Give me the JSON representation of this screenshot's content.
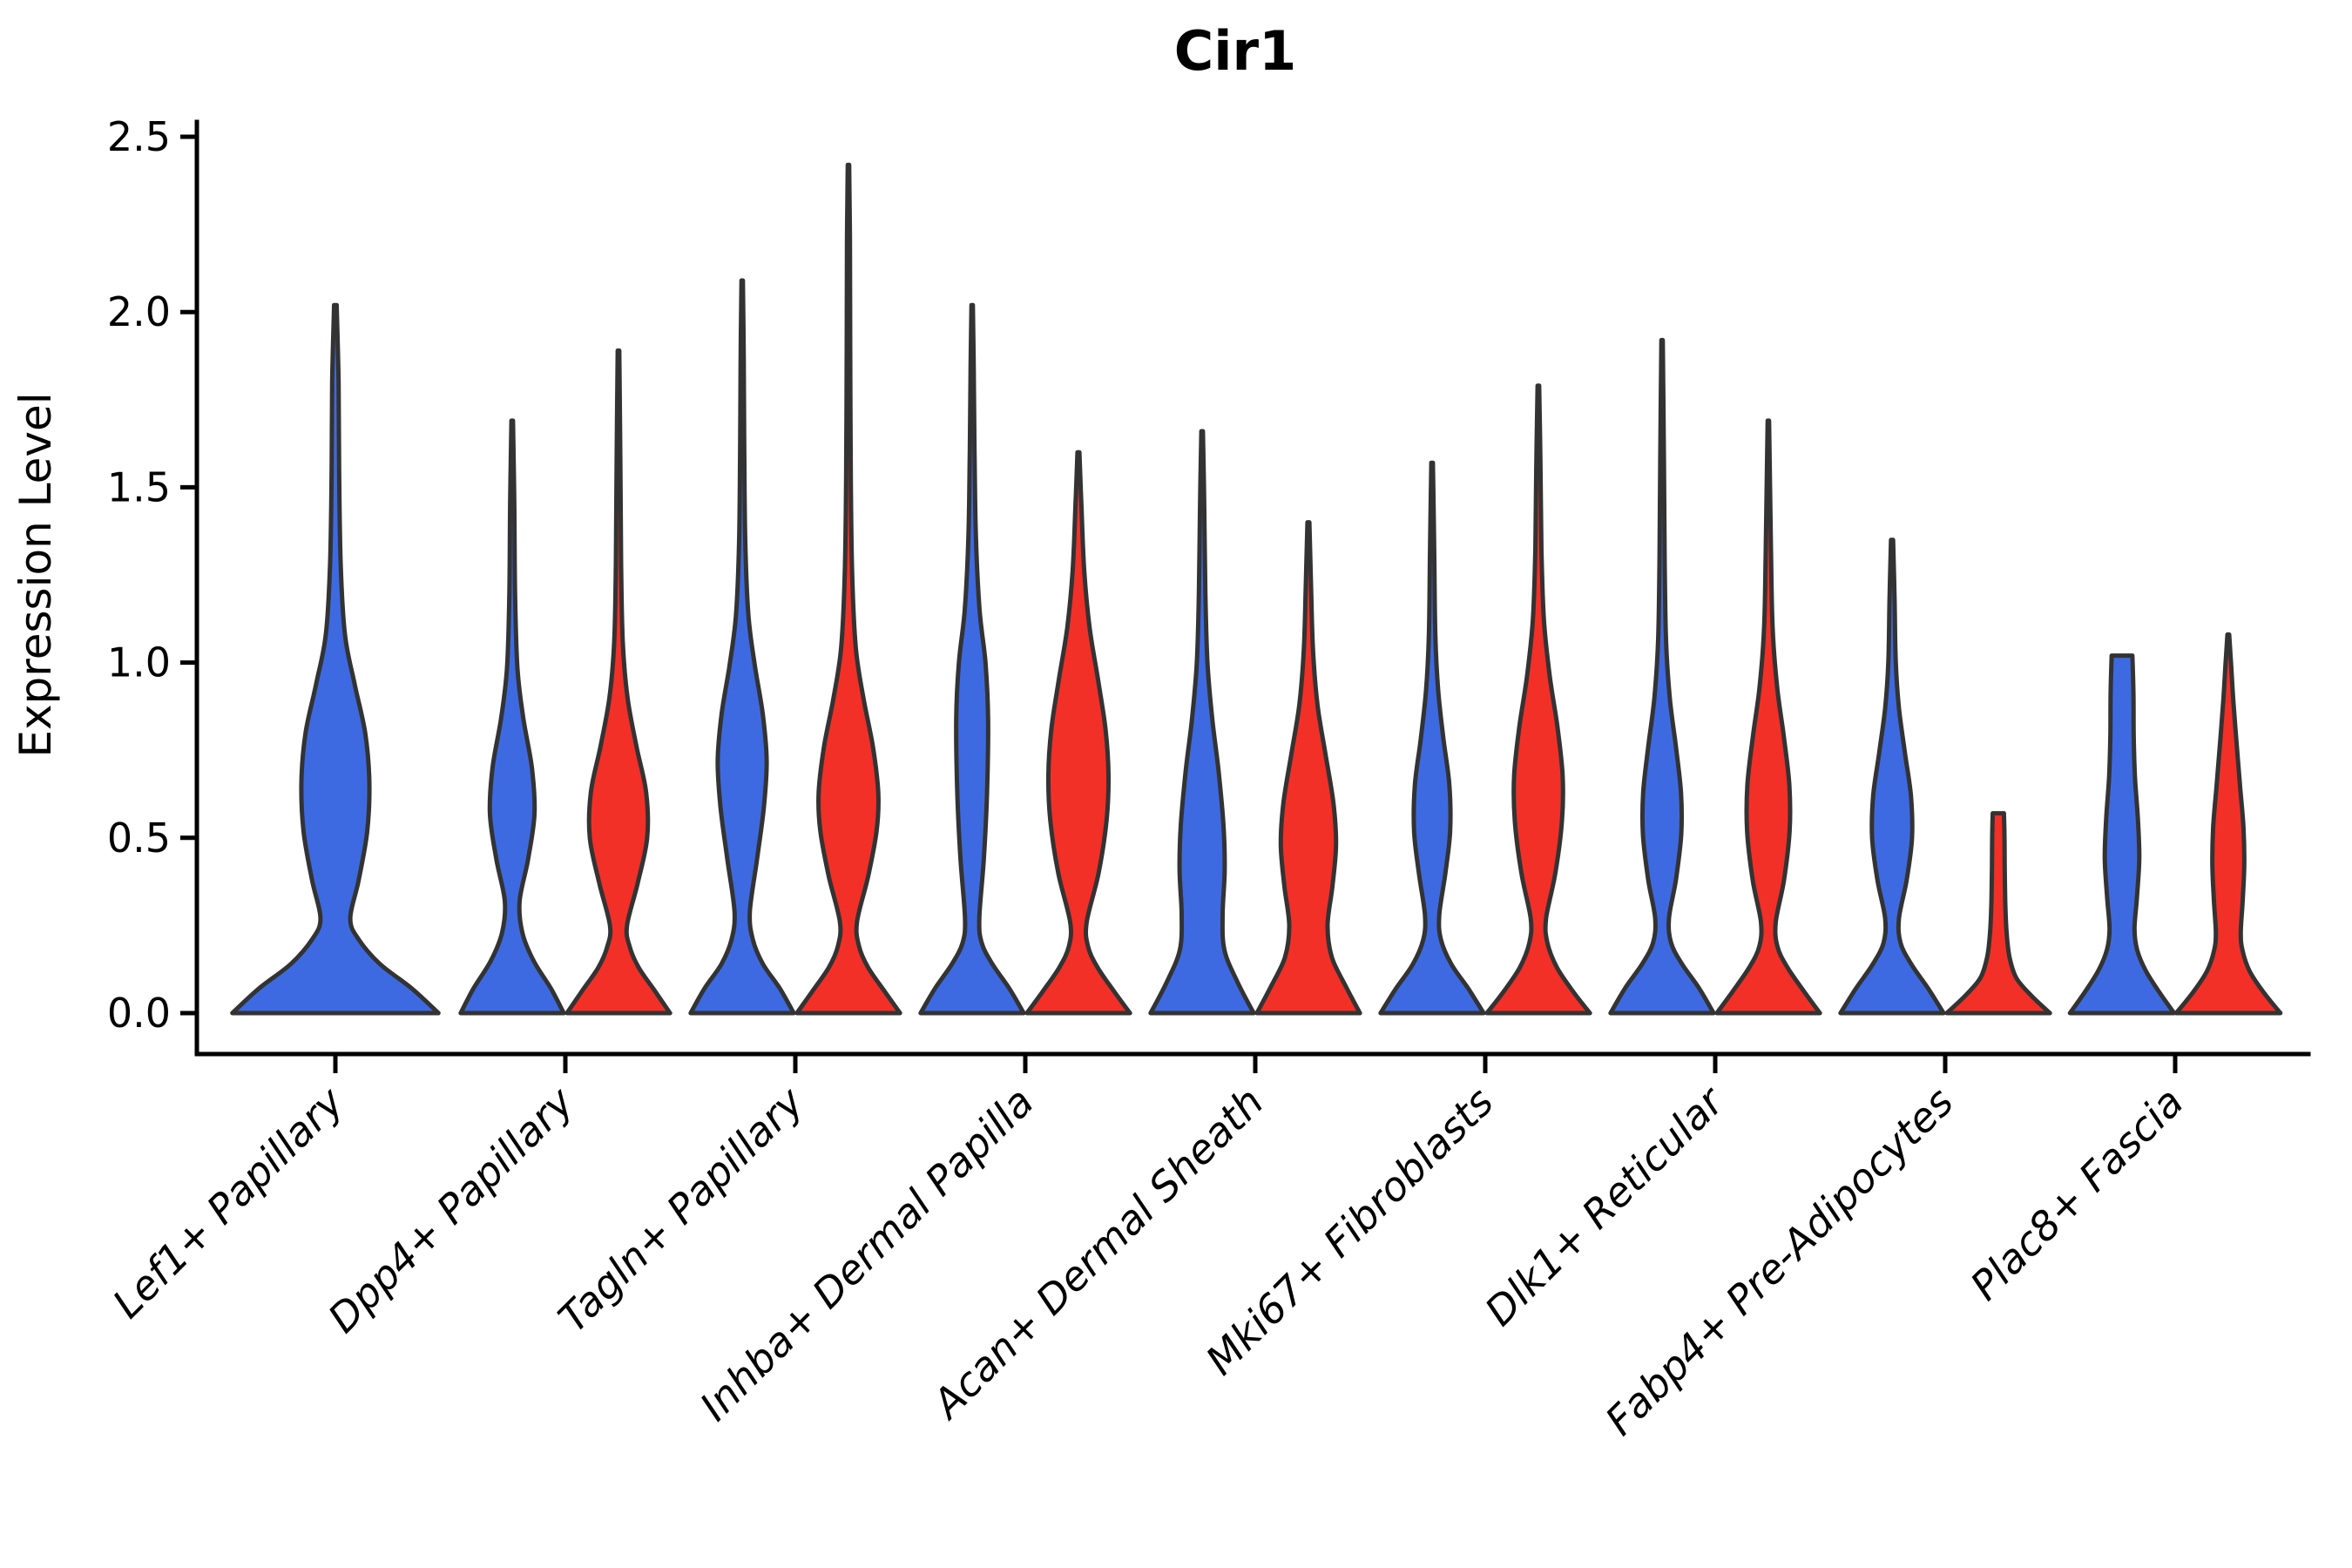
{
  "chart_data": {
    "type": "violin",
    "title": "Cir1",
    "xlabel": "",
    "ylabel": "Expression Level",
    "ylim": [
      0,
      2.5
    ],
    "yticks": [
      0,
      0.5,
      1.0,
      1.5,
      2.0,
      2.5
    ],
    "ytick_labels": [
      "0.0",
      "0.5",
      "1.0",
      "1.5",
      "2.0",
      "2.5"
    ],
    "grid": false,
    "legend": "none",
    "categories": [
      "Lef1+ Papillary",
      "Dpp4+ Papillary",
      "Tagln+ Papillary",
      "Inhba+ Dermal Papilla",
      "Acan+ Dermal Sheath",
      "Mki67+ Fibroblasts",
      "Dlk1+ Reticular",
      "Fabp4+ Pre-Adipocytes",
      "Plac8+ Fascia"
    ],
    "colors": {
      "blue": "#3E6AE1",
      "red": "#F23028",
      "outline": "#333333",
      "axis": "#000000"
    },
    "series_note": "blue = left split violin, red = right split violin; first category has a single double-width blue violin",
    "violins": [
      {
        "category": 0,
        "split": "blue",
        "offset": 0,
        "width_scale": 2,
        "max": 2.02,
        "blunt": false,
        "profile": [
          [
            0,
            0.97
          ],
          [
            0.07,
            0.72
          ],
          [
            0.14,
            0.42
          ],
          [
            0.21,
            0.22
          ],
          [
            0.27,
            0.14
          ],
          [
            0.38,
            0.22
          ],
          [
            0.52,
            0.3
          ],
          [
            0.66,
            0.32
          ],
          [
            0.8,
            0.28
          ],
          [
            0.94,
            0.18
          ],
          [
            1.08,
            0.09
          ],
          [
            1.28,
            0.05
          ],
          [
            1.55,
            0.035
          ],
          [
            1.8,
            0.03
          ],
          [
            2.02,
            0.012
          ]
        ]
      },
      {
        "category": 1,
        "split": "blue",
        "offset": -1,
        "width_scale": 1,
        "max": 1.69,
        "blunt": false,
        "profile": [
          [
            0,
            0.97
          ],
          [
            0.07,
            0.73
          ],
          [
            0.15,
            0.4
          ],
          [
            0.23,
            0.19
          ],
          [
            0.32,
            0.14
          ],
          [
            0.44,
            0.3
          ],
          [
            0.57,
            0.42
          ],
          [
            0.7,
            0.37
          ],
          [
            0.84,
            0.21
          ],
          [
            0.98,
            0.1
          ],
          [
            1.18,
            0.055
          ],
          [
            1.45,
            0.04
          ],
          [
            1.69,
            0.015
          ]
        ]
      },
      {
        "category": 1,
        "split": "red",
        "offset": 1,
        "width_scale": 1,
        "max": 1.89,
        "blunt": false,
        "profile": [
          [
            0,
            0.97
          ],
          [
            0.06,
            0.7
          ],
          [
            0.13,
            0.38
          ],
          [
            0.19,
            0.21
          ],
          [
            0.25,
            0.16
          ],
          [
            0.37,
            0.36
          ],
          [
            0.5,
            0.54
          ],
          [
            0.63,
            0.52
          ],
          [
            0.76,
            0.34
          ],
          [
            0.9,
            0.17
          ],
          [
            1.06,
            0.08
          ],
          [
            1.28,
            0.05
          ],
          [
            1.58,
            0.035
          ],
          [
            1.89,
            0.015
          ]
        ]
      },
      {
        "category": 2,
        "split": "blue",
        "offset": -1,
        "width_scale": 1,
        "max": 2.09,
        "blunt": false,
        "profile": [
          [
            0,
            0.97
          ],
          [
            0.07,
            0.71
          ],
          [
            0.14,
            0.39
          ],
          [
            0.21,
            0.2
          ],
          [
            0.29,
            0.145
          ],
          [
            0.44,
            0.28
          ],
          [
            0.59,
            0.41
          ],
          [
            0.72,
            0.46
          ],
          [
            0.85,
            0.39
          ],
          [
            0.99,
            0.24
          ],
          [
            1.13,
            0.12
          ],
          [
            1.33,
            0.06
          ],
          [
            1.6,
            0.04
          ],
          [
            1.86,
            0.03
          ],
          [
            2.09,
            0.012
          ]
        ]
      },
      {
        "category": 2,
        "split": "red",
        "offset": 1,
        "width_scale": 1,
        "max": 2.42,
        "blunt": false,
        "profile": [
          [
            0,
            0.97
          ],
          [
            0.06,
            0.69
          ],
          [
            0.13,
            0.37
          ],
          [
            0.19,
            0.2
          ],
          [
            0.26,
            0.16
          ],
          [
            0.39,
            0.37
          ],
          [
            0.52,
            0.53
          ],
          [
            0.63,
            0.56
          ],
          [
            0.76,
            0.46
          ],
          [
            0.9,
            0.28
          ],
          [
            1.04,
            0.14
          ],
          [
            1.25,
            0.07
          ],
          [
            1.52,
            0.045
          ],
          [
            1.9,
            0.032
          ],
          [
            2.2,
            0.028
          ],
          [
            2.42,
            0.012
          ]
        ]
      },
      {
        "category": 3,
        "split": "blue",
        "offset": -1,
        "width_scale": 1,
        "max": 2.02,
        "blunt": false,
        "profile": [
          [
            0,
            0.97
          ],
          [
            0.07,
            0.7
          ],
          [
            0.14,
            0.38
          ],
          [
            0.2,
            0.18
          ],
          [
            0.27,
            0.135
          ],
          [
            0.44,
            0.22
          ],
          [
            0.63,
            0.28
          ],
          [
            0.84,
            0.3
          ],
          [
            1.0,
            0.25
          ],
          [
            1.15,
            0.14
          ],
          [
            1.36,
            0.07
          ],
          [
            1.6,
            0.045
          ],
          [
            1.84,
            0.03
          ],
          [
            2.02,
            0.012
          ]
        ]
      },
      {
        "category": 3,
        "split": "red",
        "offset": 1,
        "width_scale": 1,
        "max": 1.6,
        "blunt": false,
        "profile": [
          [
            0,
            0.97
          ],
          [
            0.06,
            0.68
          ],
          [
            0.13,
            0.36
          ],
          [
            0.19,
            0.18
          ],
          [
            0.26,
            0.155
          ],
          [
            0.4,
            0.38
          ],
          [
            0.55,
            0.53
          ],
          [
            0.68,
            0.565
          ],
          [
            0.81,
            0.51
          ],
          [
            0.95,
            0.37
          ],
          [
            1.1,
            0.21
          ],
          [
            1.26,
            0.11
          ],
          [
            1.45,
            0.055
          ],
          [
            1.6,
            0.018
          ]
        ]
      },
      {
        "category": 4,
        "split": "blue",
        "offset": -1,
        "width_scale": 1,
        "max": 1.66,
        "blunt": false,
        "profile": [
          [
            0,
            0.97
          ],
          [
            0.09,
            0.66
          ],
          [
            0.18,
            0.42
          ],
          [
            0.28,
            0.385
          ],
          [
            0.41,
            0.425
          ],
          [
            0.54,
            0.4
          ],
          [
            0.69,
            0.31
          ],
          [
            0.84,
            0.19
          ],
          [
            1.0,
            0.1
          ],
          [
            1.2,
            0.06
          ],
          [
            1.45,
            0.04
          ],
          [
            1.66,
            0.015
          ]
        ]
      },
      {
        "category": 4,
        "split": "red",
        "offset": 1,
        "width_scale": 1,
        "max": 1.4,
        "blunt": false,
        "profile": [
          [
            0,
            0.97
          ],
          [
            0.08,
            0.69
          ],
          [
            0.16,
            0.44
          ],
          [
            0.25,
            0.36
          ],
          [
            0.36,
            0.45
          ],
          [
            0.48,
            0.52
          ],
          [
            0.6,
            0.47
          ],
          [
            0.74,
            0.32
          ],
          [
            0.88,
            0.17
          ],
          [
            1.04,
            0.085
          ],
          [
            1.22,
            0.05
          ],
          [
            1.4,
            0.018
          ]
        ]
      },
      {
        "category": 5,
        "split": "blue",
        "offset": -1,
        "width_scale": 1,
        "max": 1.57,
        "blunt": false,
        "profile": [
          [
            0,
            0.97
          ],
          [
            0.07,
            0.68
          ],
          [
            0.14,
            0.36
          ],
          [
            0.21,
            0.165
          ],
          [
            0.28,
            0.135
          ],
          [
            0.4,
            0.25
          ],
          [
            0.52,
            0.34
          ],
          [
            0.65,
            0.325
          ],
          [
            0.78,
            0.215
          ],
          [
            0.92,
            0.115
          ],
          [
            1.08,
            0.06
          ],
          [
            1.32,
            0.04
          ],
          [
            1.57,
            0.015
          ]
        ]
      },
      {
        "category": 5,
        "split": "red",
        "offset": 1,
        "width_scale": 1,
        "max": 1.79,
        "blunt": false,
        "profile": [
          [
            0,
            0.97
          ],
          [
            0.06,
            0.66
          ],
          [
            0.13,
            0.35
          ],
          [
            0.2,
            0.17
          ],
          [
            0.27,
            0.145
          ],
          [
            0.4,
            0.32
          ],
          [
            0.55,
            0.445
          ],
          [
            0.68,
            0.455
          ],
          [
            0.82,
            0.355
          ],
          [
            0.96,
            0.215
          ],
          [
            1.12,
            0.105
          ],
          [
            1.32,
            0.058
          ],
          [
            1.56,
            0.04
          ],
          [
            1.79,
            0.015
          ]
        ]
      },
      {
        "category": 6,
        "split": "blue",
        "offset": -1,
        "width_scale": 1,
        "max": 1.92,
        "blunt": false,
        "profile": [
          [
            0,
            0.97
          ],
          [
            0.07,
            0.7
          ],
          [
            0.14,
            0.375
          ],
          [
            0.2,
            0.17
          ],
          [
            0.27,
            0.13
          ],
          [
            0.38,
            0.26
          ],
          [
            0.51,
            0.36
          ],
          [
            0.63,
            0.355
          ],
          [
            0.76,
            0.26
          ],
          [
            0.9,
            0.145
          ],
          [
            1.06,
            0.075
          ],
          [
            1.28,
            0.05
          ],
          [
            1.58,
            0.035
          ],
          [
            1.92,
            0.012
          ]
        ]
      },
      {
        "category": 6,
        "split": "red",
        "offset": 1,
        "width_scale": 1,
        "max": 1.69,
        "blunt": false,
        "profile": [
          [
            0,
            0.97
          ],
          [
            0.06,
            0.68
          ],
          [
            0.13,
            0.36
          ],
          [
            0.19,
            0.17
          ],
          [
            0.26,
            0.14
          ],
          [
            0.38,
            0.295
          ],
          [
            0.52,
            0.4
          ],
          [
            0.65,
            0.395
          ],
          [
            0.79,
            0.29
          ],
          [
            0.93,
            0.165
          ],
          [
            1.1,
            0.08
          ],
          [
            1.32,
            0.05
          ],
          [
            1.69,
            0.013
          ]
        ]
      },
      {
        "category": 7,
        "split": "blue",
        "offset": -1,
        "width_scale": 1,
        "max": 1.35,
        "blunt": false,
        "profile": [
          [
            0,
            0.97
          ],
          [
            0.07,
            0.68
          ],
          [
            0.14,
            0.36
          ],
          [
            0.2,
            0.16
          ],
          [
            0.27,
            0.13
          ],
          [
            0.38,
            0.275
          ],
          [
            0.5,
            0.375
          ],
          [
            0.62,
            0.355
          ],
          [
            0.74,
            0.245
          ],
          [
            0.87,
            0.13
          ],
          [
            1.0,
            0.07
          ],
          [
            1.18,
            0.048
          ],
          [
            1.35,
            0.02
          ]
        ]
      },
      {
        "category": 7,
        "split": "red",
        "offset": 1,
        "width_scale": 1,
        "max": 0.57,
        "blunt": true,
        "profile": [
          [
            0,
            0.97
          ],
          [
            0.05,
            0.62
          ],
          [
            0.1,
            0.34
          ],
          [
            0.16,
            0.21
          ],
          [
            0.23,
            0.155
          ],
          [
            0.32,
            0.13
          ],
          [
            0.42,
            0.12
          ],
          [
            0.51,
            0.115
          ],
          [
            0.57,
            0.105
          ]
        ]
      },
      {
        "category": 8,
        "split": "blue",
        "offset": -1,
        "width_scale": 1,
        "max": 1.02,
        "blunt": true,
        "profile": [
          [
            0,
            0.98
          ],
          [
            0.06,
            0.7
          ],
          [
            0.12,
            0.45
          ],
          [
            0.18,
            0.285
          ],
          [
            0.24,
            0.235
          ],
          [
            0.33,
            0.28
          ],
          [
            0.44,
            0.325
          ],
          [
            0.55,
            0.3
          ],
          [
            0.67,
            0.245
          ],
          [
            0.79,
            0.22
          ],
          [
            0.91,
            0.215
          ],
          [
            1.02,
            0.195
          ]
        ]
      },
      {
        "category": 8,
        "split": "red",
        "offset": 1,
        "width_scale": 1,
        "max": 1.08,
        "blunt": false,
        "profile": [
          [
            0,
            0.98
          ],
          [
            0.06,
            0.66
          ],
          [
            0.12,
            0.4
          ],
          [
            0.18,
            0.265
          ],
          [
            0.23,
            0.235
          ],
          [
            0.32,
            0.27
          ],
          [
            0.42,
            0.3
          ],
          [
            0.53,
            0.285
          ],
          [
            0.65,
            0.22
          ],
          [
            0.77,
            0.155
          ],
          [
            0.89,
            0.095
          ],
          [
            1.0,
            0.05
          ],
          [
            1.08,
            0.016
          ]
        ]
      }
    ]
  }
}
